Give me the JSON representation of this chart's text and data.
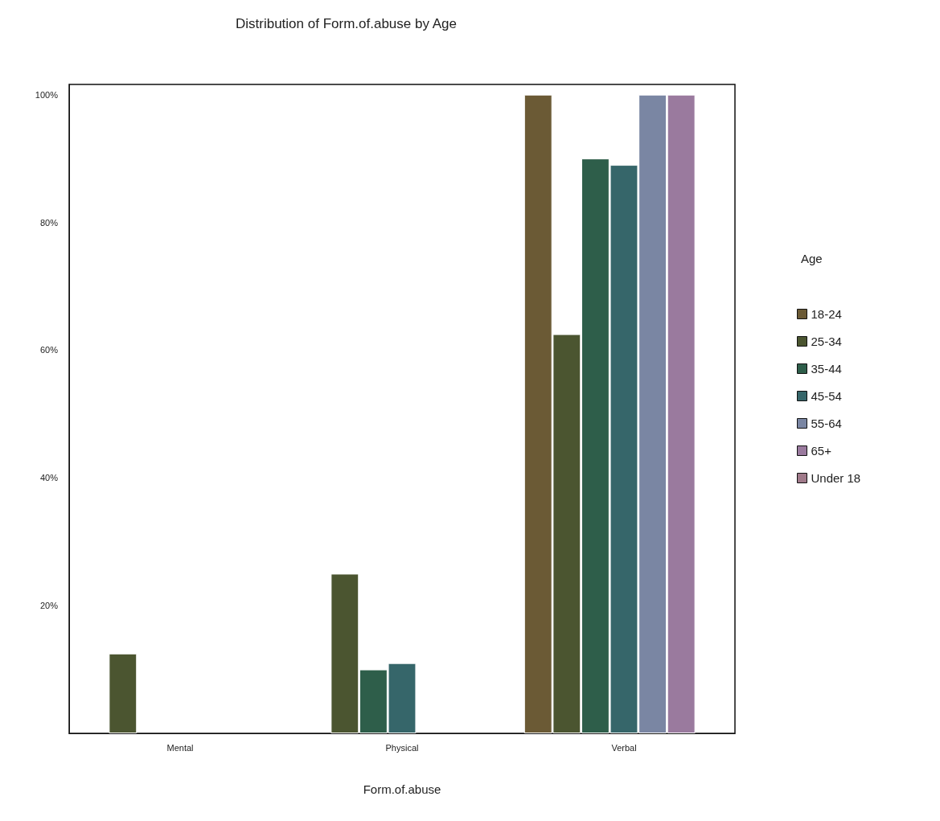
{
  "chart_data": {
    "type": "bar",
    "title": "Distribution of Form.of.abuse by Age",
    "xlabel": "Form.of.abuse",
    "legend_title": "Age",
    "categories": [
      "Mental",
      "Physical",
      "Verbal"
    ],
    "series": [
      {
        "name": "18-24",
        "color": "#6b5a35",
        "values": [
          null,
          null,
          100
        ]
      },
      {
        "name": "25-34",
        "color": "#4b5530",
        "values": [
          12.5,
          25,
          62.5
        ]
      },
      {
        "name": "35-44",
        "color": "#2e5e4a",
        "values": [
          null,
          10,
          90
        ]
      },
      {
        "name": "45-54",
        "color": "#36666a",
        "values": [
          null,
          11,
          89
        ]
      },
      {
        "name": "55-64",
        "color": "#7a86a3",
        "values": [
          null,
          null,
          100
        ]
      },
      {
        "name": "65+",
        "color": "#9a7a9e",
        "values": [
          null,
          null,
          100
        ]
      },
      {
        "name": "Under 18",
        "color": "#a07a8a",
        "values": [
          null,
          null,
          null
        ]
      }
    ],
    "ylim": [
      0,
      101.6
    ],
    "yticks": [
      {
        "value": 20,
        "label": "20%"
      },
      {
        "value": 40,
        "label": "40%"
      },
      {
        "value": 60,
        "label": "60%"
      },
      {
        "value": 80,
        "label": "80%"
      },
      {
        "value": 100,
        "label": "100%"
      }
    ],
    "grid": false,
    "legend": "right"
  }
}
